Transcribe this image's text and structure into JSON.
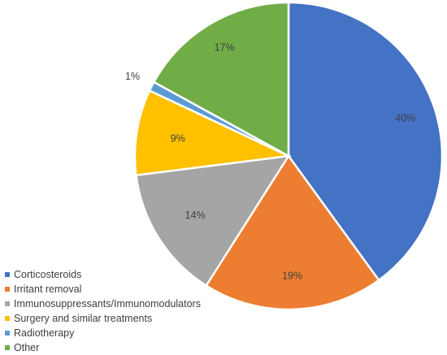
{
  "chart_data": {
    "type": "pie",
    "title": "",
    "legend_position": "bottom-left",
    "slices": [
      {
        "label": "Corticosteroids",
        "value": 40,
        "data_label": "40%",
        "color": "#4472C4"
      },
      {
        "label": "Irritant removal",
        "value": 19,
        "data_label": "19%",
        "color": "#ED7D31"
      },
      {
        "label": "Immunosuppressants/Immunomodulators",
        "value": 14,
        "data_label": "14%",
        "color": "#A5A5A5"
      },
      {
        "label": "Surgery and similar treatments",
        "value": 9,
        "data_label": "9%",
        "color": "#FFC000"
      },
      {
        "label": "Radiotherapy",
        "value": 1,
        "data_label": "1%",
        "color": "#5B9BD5"
      },
      {
        "label": "Other",
        "value": 17,
        "data_label": "17%",
        "color": "#70AD47"
      }
    ]
  }
}
